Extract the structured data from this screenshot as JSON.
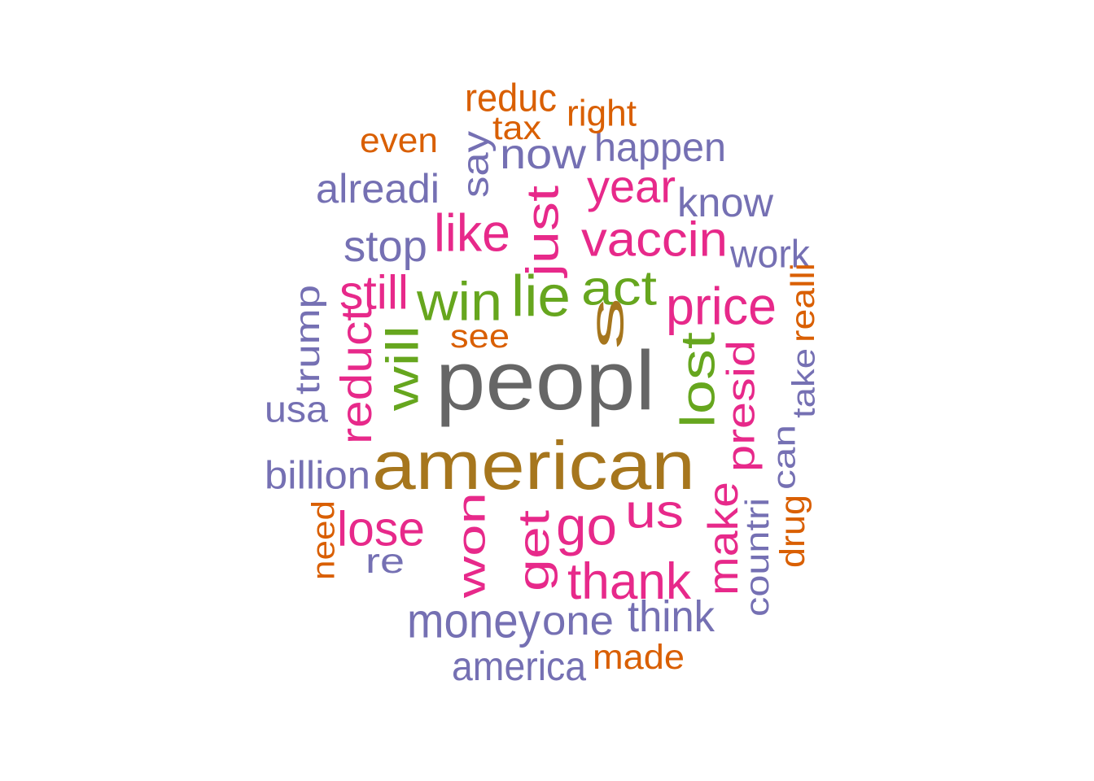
{
  "chart_data": {
    "type": "wordcloud",
    "palette": {
      "grey": "#666666",
      "brown": "#A6761D",
      "green": "#66A61E",
      "pink": "#E7298A",
      "purple": "#7570B3",
      "orange": "#D95F02"
    },
    "words": [
      {
        "text": "peopl",
        "color": "grey"
      },
      {
        "text": "american",
        "color": "brown"
      },
      {
        "text": "s",
        "color": "brown"
      },
      {
        "text": "win",
        "color": "green"
      },
      {
        "text": "lie",
        "color": "green"
      },
      {
        "text": "act",
        "color": "green"
      },
      {
        "text": "will",
        "color": "green"
      },
      {
        "text": "lost",
        "color": "green"
      },
      {
        "text": "just",
        "color": "pink"
      },
      {
        "text": "vaccin",
        "color": "pink"
      },
      {
        "text": "price",
        "color": "pink"
      },
      {
        "text": "like",
        "color": "pink"
      },
      {
        "text": "year",
        "color": "pink"
      },
      {
        "text": "still",
        "color": "pink"
      },
      {
        "text": "reduct",
        "color": "pink"
      },
      {
        "text": "presid",
        "color": "pink"
      },
      {
        "text": "won",
        "color": "pink"
      },
      {
        "text": "get",
        "color": "pink"
      },
      {
        "text": "go",
        "color": "pink"
      },
      {
        "text": "us",
        "color": "pink"
      },
      {
        "text": "lose",
        "color": "pink"
      },
      {
        "text": "thank",
        "color": "pink"
      },
      {
        "text": "make",
        "color": "pink"
      },
      {
        "text": "now",
        "color": "purple"
      },
      {
        "text": "happen",
        "color": "purple"
      },
      {
        "text": "say",
        "color": "purple"
      },
      {
        "text": "alreadi",
        "color": "purple"
      },
      {
        "text": "know",
        "color": "purple"
      },
      {
        "text": "stop",
        "color": "purple"
      },
      {
        "text": "work",
        "color": "purple"
      },
      {
        "text": "trump",
        "color": "purple"
      },
      {
        "text": "usa",
        "color": "purple"
      },
      {
        "text": "take",
        "color": "purple"
      },
      {
        "text": "can",
        "color": "purple"
      },
      {
        "text": "billion",
        "color": "purple"
      },
      {
        "text": "countri",
        "color": "purple"
      },
      {
        "text": "re",
        "color": "purple"
      },
      {
        "text": "money",
        "color": "purple"
      },
      {
        "text": "one",
        "color": "purple"
      },
      {
        "text": "think",
        "color": "purple"
      },
      {
        "text": "america",
        "color": "purple"
      },
      {
        "text": "reduc",
        "color": "orange"
      },
      {
        "text": "right",
        "color": "orange"
      },
      {
        "text": "tax",
        "color": "orange"
      },
      {
        "text": "even",
        "color": "orange"
      },
      {
        "text": "see",
        "color": "orange"
      },
      {
        "text": "realli",
        "color": "orange"
      },
      {
        "text": "drug",
        "color": "orange"
      },
      {
        "text": "need",
        "color": "orange"
      },
      {
        "text": "made",
        "color": "orange"
      }
    ]
  }
}
